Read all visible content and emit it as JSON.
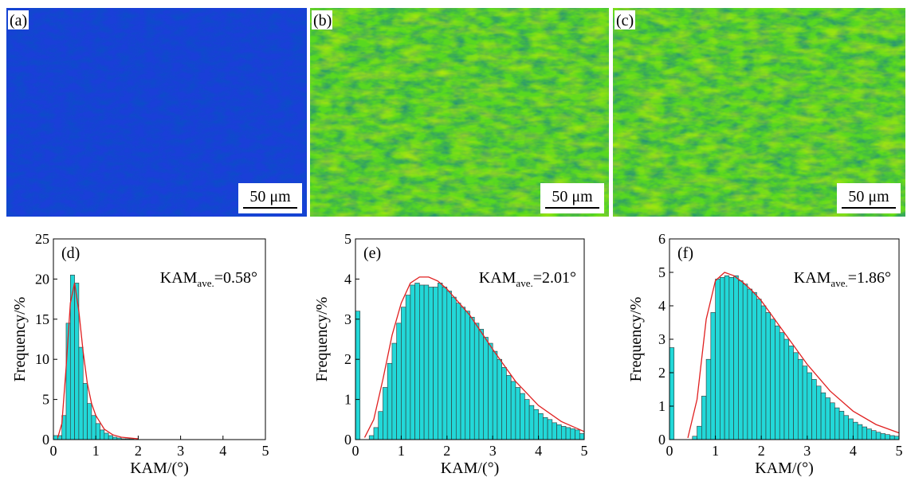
{
  "images": [
    {
      "label": "(a)",
      "scale_bar": "50 μm",
      "color": "#1a3fd8"
    },
    {
      "label": "(b)",
      "scale_bar": "50 μm",
      "color": "#58d820"
    },
    {
      "label": "(c)",
      "scale_bar": "50 μm",
      "color": "#58d820"
    }
  ],
  "chart_data": [
    {
      "type": "histogram",
      "panel_label": "(d)",
      "annotation": {
        "main": "KAM",
        "sub": "ave.",
        "rest": "=0.58°"
      },
      "x_label": "KAM/(°)",
      "y_label": "Frequency/%",
      "color": "#22d8d8",
      "bins": [
        0,
        0.1,
        0.2,
        0.3,
        0.4,
        0.5,
        0.6,
        0.7,
        0.8,
        0.9,
        1,
        1.1,
        1.2,
        1.3,
        1.4,
        1.5,
        1.6,
        1.7,
        1.8,
        1.9,
        2,
        2.1,
        2.2,
        2.3,
        2.4,
        2.5,
        2.6,
        2.7,
        2.8,
        2.9,
        3,
        3.1,
        3.2,
        3.3,
        3.4,
        3.5,
        3.6,
        3.7,
        3.8,
        3.9,
        4,
        4.1,
        4.2,
        4.3,
        4.4,
        4.5,
        4.6,
        4.7,
        4.8,
        4.9,
        5
      ],
      "values": [
        0.5,
        0.5,
        3,
        14.5,
        20.5,
        19.5,
        11.5,
        7,
        4.5,
        3,
        2,
        1.2,
        0.8,
        0.5,
        0.3,
        0.2,
        0.1,
        0.1,
        0.1,
        0,
        0,
        0,
        0,
        0,
        0,
        0,
        0,
        0,
        0,
        0,
        0,
        0,
        0,
        0,
        0,
        0,
        0,
        0,
        0,
        0,
        0,
        0,
        0,
        0,
        0,
        0,
        0,
        0,
        0,
        0
      ],
      "fit": {
        "color": "#e02020",
        "x": [
          0.1,
          0.2,
          0.3,
          0.4,
          0.5,
          0.6,
          0.7,
          0.8,
          0.9,
          1,
          1.2,
          1.4,
          1.6,
          1.8,
          2
        ],
        "values": [
          0.2,
          2,
          9,
          17,
          19.5,
          16,
          11,
          7,
          4.5,
          3,
          1.3,
          0.6,
          0.3,
          0.2,
          0.1
        ]
      },
      "xlim": [
        0,
        5
      ],
      "xticks": [
        0,
        1,
        2,
        3,
        4,
        5
      ],
      "ylim": [
        0,
        25
      ],
      "yticks": [
        0,
        5,
        10,
        15,
        20,
        25
      ]
    },
    {
      "type": "histogram",
      "panel_label": "(e)",
      "annotation": {
        "main": "KAM",
        "sub": "ave.",
        "rest": "=2.01°"
      },
      "x_label": "KAM/(°)",
      "y_label": "Frequency/%",
      "color": "#22d8d8",
      "bins": [
        0,
        0.1,
        0.2,
        0.3,
        0.4,
        0.5,
        0.6,
        0.7,
        0.8,
        0.9,
        1,
        1.1,
        1.2,
        1.3,
        1.4,
        1.5,
        1.6,
        1.7,
        1.8,
        1.9,
        2,
        2.1,
        2.2,
        2.3,
        2.4,
        2.5,
        2.6,
        2.7,
        2.8,
        2.9,
        3,
        3.1,
        3.2,
        3.3,
        3.4,
        3.5,
        3.6,
        3.7,
        3.8,
        3.9,
        4,
        4.1,
        4.2,
        4.3,
        4.4,
        4.5,
        4.6,
        4.7,
        4.8,
        4.9,
        5
      ],
      "values": [
        3.2,
        0,
        0,
        0.1,
        0.3,
        0.7,
        1.3,
        1.9,
        2.4,
        2.9,
        3.3,
        3.6,
        3.85,
        3.9,
        3.85,
        3.85,
        3.8,
        3.8,
        3.9,
        3.8,
        3.7,
        3.55,
        3.4,
        3.3,
        3.2,
        3.05,
        2.9,
        2.75,
        2.55,
        2.4,
        2.2,
        2,
        1.8,
        1.6,
        1.45,
        1.3,
        1.15,
        1,
        0.85,
        0.75,
        0.65,
        0.55,
        0.5,
        0.42,
        0.37,
        0.33,
        0.3,
        0.27,
        0.24,
        0.15
      ],
      "fit": {
        "color": "#e02020",
        "x": [
          0.2,
          0.4,
          0.6,
          0.8,
          1,
          1.2,
          1.4,
          1.6,
          1.8,
          2,
          2.5,
          3,
          3.5,
          4,
          4.5,
          5
        ],
        "values": [
          0.05,
          0.5,
          1.5,
          2.6,
          3.4,
          3.9,
          4.05,
          4.05,
          3.95,
          3.75,
          3.1,
          2.25,
          1.45,
          0.85,
          0.45,
          0.2
        ]
      },
      "xlim": [
        0,
        5
      ],
      "xticks": [
        0,
        1,
        2,
        3,
        4,
        5
      ],
      "ylim": [
        0,
        5
      ],
      "yticks": [
        0,
        1,
        2,
        3,
        4,
        5
      ]
    },
    {
      "type": "histogram",
      "panel_label": "(f)",
      "annotation": {
        "main": "KAM",
        "sub": "ave.",
        "rest": "=1.86°"
      },
      "x_label": "KAM/(°)",
      "y_label": "Frequency/%",
      "color": "#22d8d8",
      "bins": [
        0,
        0.1,
        0.2,
        0.3,
        0.4,
        0.5,
        0.6,
        0.7,
        0.8,
        0.9,
        1,
        1.1,
        1.2,
        1.3,
        1.4,
        1.5,
        1.6,
        1.7,
        1.8,
        1.9,
        2,
        2.1,
        2.2,
        2.3,
        2.4,
        2.5,
        2.6,
        2.7,
        2.8,
        2.9,
        3,
        3.1,
        3.2,
        3.3,
        3.4,
        3.5,
        3.6,
        3.7,
        3.8,
        3.9,
        4,
        4.1,
        4.2,
        4.3,
        4.4,
        4.5,
        4.6,
        4.7,
        4.8,
        4.9,
        5
      ],
      "values": [
        2.75,
        0,
        0,
        0,
        0,
        0.1,
        0.4,
        1.3,
        2.4,
        3.8,
        4.8,
        4.85,
        4.9,
        4.85,
        4.9,
        4.75,
        4.65,
        4.5,
        4.4,
        4.2,
        4,
        3.8,
        3.6,
        3.4,
        3.2,
        3,
        2.8,
        2.6,
        2.4,
        2.2,
        2,
        1.8,
        1.6,
        1.4,
        1.25,
        1.1,
        0.95,
        0.85,
        0.72,
        0.62,
        0.52,
        0.45,
        0.38,
        0.32,
        0.27,
        0.22,
        0.18,
        0.15,
        0.12,
        0.1
      ],
      "fit": {
        "color": "#e02020",
        "x": [
          0.4,
          0.6,
          0.8,
          1,
          1.2,
          1.4,
          1.6,
          1.8,
          2,
          2.5,
          3,
          3.5,
          4,
          4.5,
          5
        ],
        "values": [
          0.05,
          1.2,
          3.6,
          4.75,
          5,
          4.9,
          4.7,
          4.45,
          4.15,
          3.2,
          2.25,
          1.45,
          0.85,
          0.45,
          0.2
        ]
      },
      "xlim": [
        0,
        5
      ],
      "xticks": [
        0,
        1,
        2,
        3,
        4,
        5
      ],
      "ylim": [
        0,
        6
      ],
      "yticks": [
        0,
        1,
        2,
        3,
        4,
        5,
        6
      ]
    }
  ]
}
